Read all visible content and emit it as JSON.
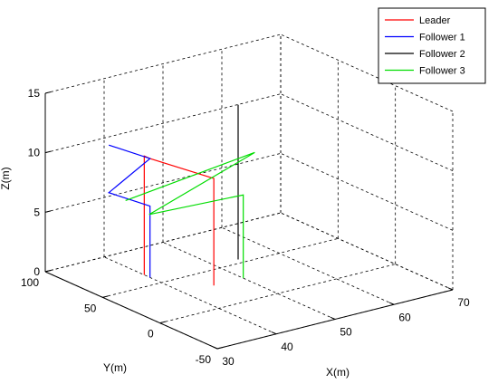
{
  "chart_data": {
    "type": "line3d",
    "xlabel": "X(m)",
    "ylabel": "Y(m)",
    "zlabel": "Z(m)",
    "xlim": [
      30,
      70
    ],
    "ylim": [
      -50,
      100
    ],
    "zlim": [
      0,
      15
    ],
    "xticks": [
      "30",
      "40",
      "50",
      "60",
      "70"
    ],
    "yticks": [
      "-50",
      "0",
      "50",
      "100"
    ],
    "zticks": [
      "0",
      "5",
      "10",
      "15"
    ],
    "grid": true,
    "legend_position": "top-right",
    "series": [
      {
        "name": "Leader",
        "color": "#ff0000",
        "points": [
          [
            40,
            65,
            0
          ],
          [
            40,
            65,
            10
          ],
          [
            40,
            60,
            10
          ],
          [
            45,
            30,
            9
          ],
          [
            45,
            30,
            0
          ]
        ]
      },
      {
        "name": "Follower 1",
        "color": "#0000ff",
        "points": [
          [
            33,
            60,
            12
          ],
          [
            40,
            60,
            10
          ],
          [
            33,
            60,
            8
          ],
          [
            40,
            60,
            6
          ],
          [
            40,
            60,
            0
          ]
        ]
      },
      {
        "name": "Follower 2",
        "color": "#000000",
        "points": [
          [
            54,
            55,
            13
          ],
          [
            54,
            55,
            0
          ]
        ]
      },
      {
        "name": "Follower 3",
        "color": "#00dd00",
        "points": [
          [
            30,
            30,
            9
          ],
          [
            50,
            20,
            11
          ],
          [
            35,
            35,
            7
          ],
          [
            50,
            30,
            7
          ],
          [
            50,
            30,
            0
          ]
        ]
      }
    ]
  }
}
